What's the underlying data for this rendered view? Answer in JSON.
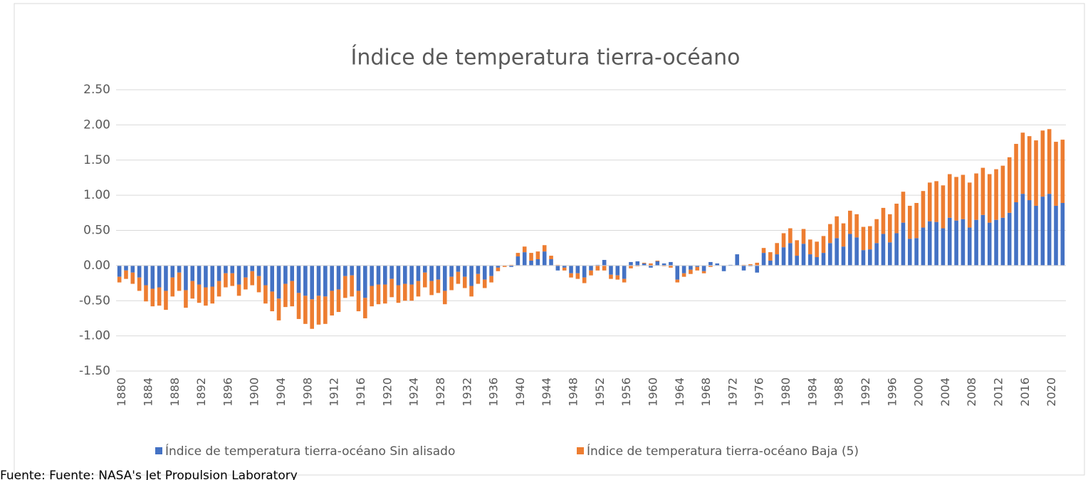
{
  "chart_data": {
    "type": "bar",
    "stacked": true,
    "title": "Índice de temperatura tierra-océano",
    "source": "Fuente: Fuente: NASA's Jet Propulsion Laboratory",
    "categories": [
      "1880",
      null,
      null,
      null,
      "1884",
      null,
      null,
      null,
      "1888",
      null,
      null,
      null,
      "1892",
      null,
      null,
      null,
      "1896",
      null,
      null,
      null,
      "1900",
      null,
      null,
      null,
      "1904",
      null,
      null,
      null,
      "1908",
      null,
      null,
      null,
      "1912",
      null,
      null,
      null,
      "1916",
      null,
      null,
      null,
      "1920",
      null,
      null,
      null,
      "1924",
      null,
      null,
      null,
      "1928",
      null,
      null,
      null,
      "1932",
      null,
      null,
      null,
      "1936",
      null,
      null,
      null,
      "1940",
      null,
      null,
      null,
      "1944",
      null,
      null,
      null,
      "1948",
      null,
      null,
      null,
      "1952",
      null,
      null,
      null,
      "1956",
      null,
      null,
      null,
      "1960",
      null,
      null,
      null,
      "1964",
      null,
      null,
      null,
      "1968",
      null,
      null,
      null,
      "1972",
      null,
      null,
      null,
      "1976",
      null,
      null,
      null,
      "1980",
      null,
      null,
      null,
      "1984",
      null,
      null,
      null,
      "1988",
      null,
      null,
      null,
      "1992",
      null,
      null,
      null,
      "1996",
      null,
      null,
      null,
      "2000",
      null,
      null,
      null,
      "2004",
      null,
      null,
      null,
      "2008",
      null,
      null,
      null,
      "2012",
      null,
      null,
      null,
      "2016",
      null,
      null,
      null,
      "2020",
      null,
      null
    ],
    "series": [
      {
        "name": "Índice de temperatura tierra-océano  Sin alisado",
        "color": "#4472c4",
        "values": [
          -0.16,
          -0.07,
          -0.1,
          -0.17,
          -0.28,
          -0.33,
          -0.31,
          -0.36,
          -0.17,
          -0.1,
          -0.35,
          -0.22,
          -0.27,
          -0.31,
          -0.3,
          -0.22,
          -0.11,
          -0.11,
          -0.27,
          -0.17,
          -0.08,
          -0.15,
          -0.28,
          -0.37,
          -0.47,
          -0.26,
          -0.22,
          -0.39,
          -0.43,
          -0.48,
          -0.43,
          -0.44,
          -0.36,
          -0.34,
          -0.15,
          -0.14,
          -0.36,
          -0.46,
          -0.29,
          -0.27,
          -0.27,
          -0.19,
          -0.28,
          -0.26,
          -0.27,
          -0.22,
          -0.1,
          -0.22,
          -0.2,
          -0.36,
          -0.16,
          -0.09,
          -0.16,
          -0.29,
          -0.12,
          -0.2,
          -0.15,
          -0.03,
          0.0,
          -0.02,
          0.13,
          0.19,
          0.07,
          0.09,
          0.2,
          0.09,
          -0.07,
          -0.03,
          -0.11,
          -0.11,
          -0.17,
          -0.07,
          0.01,
          0.08,
          -0.13,
          -0.14,
          -0.19,
          0.05,
          0.06,
          0.03,
          -0.03,
          0.06,
          0.03,
          0.05,
          -0.2,
          -0.11,
          -0.06,
          -0.02,
          -0.08,
          0.05,
          0.03,
          -0.08,
          0.01,
          0.16,
          -0.07,
          -0.01,
          -0.1,
          0.18,
          0.07,
          0.16,
          0.26,
          0.32,
          0.14,
          0.31,
          0.16,
          0.12,
          0.18,
          0.32,
          0.39,
          0.27,
          0.45,
          0.4,
          0.22,
          0.23,
          0.32,
          0.45,
          0.33,
          0.46,
          0.61,
          0.38,
          0.39,
          0.54,
          0.63,
          0.62,
          0.53,
          0.68,
          0.64,
          0.66,
          0.54,
          0.65,
          0.72,
          0.61,
          0.65,
          0.68,
          0.75,
          0.9,
          1.02,
          0.93,
          0.85,
          0.98,
          1.02,
          0.85,
          0.89
        ]
      },
      {
        "name": "Índice de temperatura tierra-océano  Baja (5)",
        "color": "#ed7d31",
        "values": [
          -0.08,
          -0.12,
          -0.16,
          -0.19,
          -0.23,
          -0.25,
          -0.26,
          -0.27,
          -0.27,
          -0.26,
          -0.25,
          -0.25,
          -0.26,
          -0.26,
          -0.24,
          -0.22,
          -0.2,
          -0.18,
          -0.16,
          -0.17,
          -0.2,
          -0.23,
          -0.26,
          -0.28,
          -0.31,
          -0.33,
          -0.36,
          -0.37,
          -0.4,
          -0.42,
          -0.41,
          -0.39,
          -0.35,
          -0.32,
          -0.31,
          -0.3,
          -0.29,
          -0.29,
          -0.29,
          -0.28,
          -0.27,
          -0.26,
          -0.25,
          -0.24,
          -0.23,
          -0.22,
          -0.21,
          -0.2,
          -0.19,
          -0.19,
          -0.19,
          -0.17,
          -0.16,
          -0.15,
          -0.14,
          -0.12,
          -0.09,
          -0.05,
          -0.02,
          0.01,
          0.05,
          0.08,
          0.11,
          0.11,
          0.09,
          0.05,
          0.01,
          -0.04,
          -0.06,
          -0.08,
          -0.08,
          -0.07,
          -0.07,
          -0.07,
          -0.06,
          -0.06,
          -0.05,
          -0.04,
          -0.01,
          0.01,
          0.03,
          0.01,
          -0.01,
          -0.03,
          -0.04,
          -0.05,
          -0.06,
          -0.05,
          -0.03,
          -0.02,
          0.0,
          0.0,
          0.0,
          0.0,
          0.01,
          0.02,
          0.04,
          0.07,
          0.12,
          0.16,
          0.2,
          0.21,
          0.22,
          0.21,
          0.21,
          0.22,
          0.24,
          0.27,
          0.31,
          0.33,
          0.33,
          0.33,
          0.33,
          0.33,
          0.34,
          0.37,
          0.4,
          0.42,
          0.44,
          0.47,
          0.5,
          0.52,
          0.55,
          0.58,
          0.61,
          0.62,
          0.62,
          0.63,
          0.64,
          0.66,
          0.67,
          0.69,
          0.72,
          0.74,
          0.79,
          0.83,
          0.87,
          0.91,
          0.93,
          0.94,
          0.92,
          0.91,
          0.9
        ]
      }
    ],
    "ylim": [
      -1.5,
      2.5
    ],
    "yticks": [
      {
        "value": -1.5,
        "label": "-1.50"
      },
      {
        "value": -1,
        "label": "-1.00"
      },
      {
        "value": -0.5,
        "label": "-0.50"
      },
      {
        "value": 0,
        "label": "0.00"
      },
      {
        "value": 0.5,
        "label": "0.50"
      },
      {
        "value": 1,
        "label": "1.00"
      },
      {
        "value": 1.5,
        "label": "1.50"
      },
      {
        "value": 2,
        "label": "2.00"
      },
      {
        "value": 2.5,
        "label": "2.50"
      }
    ],
    "grid": true,
    "legend": "bottom"
  }
}
